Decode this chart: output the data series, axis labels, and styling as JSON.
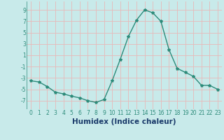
{
  "x": [
    0,
    1,
    2,
    3,
    4,
    5,
    6,
    7,
    8,
    9,
    10,
    11,
    12,
    13,
    14,
    15,
    16,
    17,
    18,
    19,
    20,
    21,
    22,
    23
  ],
  "y": [
    -3.5,
    -3.7,
    -4.5,
    -5.5,
    -5.8,
    -6.2,
    -6.5,
    -7.0,
    -7.3,
    -6.8,
    -3.5,
    0.3,
    4.3,
    7.2,
    9.0,
    8.5,
    7.0,
    2.0,
    -1.3,
    -2.0,
    -2.7,
    -4.3,
    -4.3,
    -5.0
  ],
  "xlabel": "Humidex (Indice chaleur)",
  "ylim": [
    -8.5,
    10.5
  ],
  "yticks": [
    -7,
    -5,
    -3,
    -1,
    1,
    3,
    5,
    7,
    9
  ],
  "xticks": [
    0,
    1,
    2,
    3,
    4,
    5,
    6,
    7,
    8,
    9,
    10,
    11,
    12,
    13,
    14,
    15,
    16,
    17,
    18,
    19,
    20,
    21,
    22,
    23
  ],
  "line_color": "#2d8b7a",
  "bg_color": "#c8eaea",
  "grid_color": "#e8b8b8",
  "marker": "*",
  "xlabel_color": "#1a3a6a",
  "xlabel_fontsize": 7.5,
  "tick_fontsize": 5.5
}
